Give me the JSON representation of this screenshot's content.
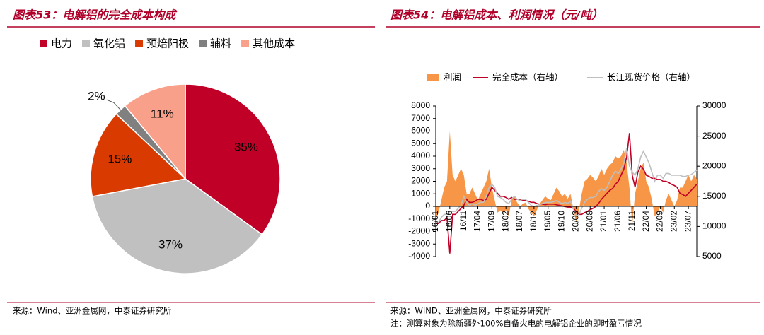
{
  "chart_data": [
    {
      "type": "pie",
      "title": "图表53：电解铝的完全成本构成",
      "categories": [
        "电力",
        "氧化铝",
        "预焙阳极",
        "辅料",
        "其他成本"
      ],
      "values": [
        35,
        37,
        15,
        2,
        11
      ],
      "value_labels": [
        "35%",
        "37%",
        "15%",
        "2%",
        "11%"
      ],
      "colors": [
        "#c00026",
        "#c0c0c0",
        "#d93a00",
        "#808080",
        "#f9a08a"
      ],
      "source": "来源：Wind、亚洲金属网，中泰证券研究所"
    },
    {
      "type": "combo",
      "title": "图表54：电解铝成本、利润情况（元/吨）",
      "categories": [
        "16/01",
        null,
        null,
        null,
        null,
        "16/06",
        null,
        null,
        null,
        null,
        "16/11",
        null,
        null,
        null,
        null,
        "17/04",
        null,
        null,
        null,
        null,
        "17/09",
        null,
        null,
        null,
        null,
        "18/02",
        null,
        null,
        null,
        null,
        "18/07",
        null,
        null,
        null,
        null,
        "18/12",
        null,
        null,
        null,
        null,
        "19/05",
        null,
        null,
        null,
        null,
        "19/10",
        null,
        null,
        null,
        null,
        "20/03",
        null,
        null,
        null,
        null,
        "20/08",
        null,
        null,
        null,
        null,
        "21/01",
        null,
        null,
        null,
        null,
        "21/06",
        null,
        null,
        null,
        null,
        "21/11",
        null,
        null,
        null,
        null,
        "22/04",
        null,
        null,
        null,
        null,
        "22/09",
        null,
        null,
        null,
        null,
        "23/02",
        null,
        null,
        null,
        null,
        "23/07",
        null,
        null,
        null
      ],
      "series": [
        {
          "name": "利润",
          "color": "#f79646",
          "axis": "y",
          "kind": "area",
          "values": [
            -1000,
            -500,
            500,
            1500,
            2000,
            6000,
            2500,
            2000,
            2500,
            3000,
            2500,
            1000,
            1000,
            1500,
            1000,
            500,
            1000,
            1500,
            2000,
            3000,
            1500,
            500,
            -500,
            -300,
            -500,
            -300,
            -800,
            500,
            800,
            300,
            0,
            200,
            300,
            -200,
            -500,
            -800,
            -300,
            200,
            500,
            800,
            600,
            500,
            1000,
            1500,
            1200,
            800,
            1000,
            600,
            1000,
            -200,
            -1200,
            -300,
            1000,
            2000,
            2200,
            2500,
            2300,
            2000,
            2400,
            3000,
            2500,
            3000,
            3300,
            3500,
            4000,
            3800,
            4000,
            4500,
            3500,
            1500,
            -1500,
            1000,
            2000,
            3000,
            3500,
            2000,
            1500,
            500,
            -800,
            -500,
            0,
            -500,
            500,
            1000,
            500,
            0,
            500,
            1500,
            1500,
            2000,
            2500,
            2000,
            2500,
            2200
          ]
        },
        {
          "name": "完全成本（右轴）",
          "color": "#c00026",
          "axis": "y2",
          "kind": "line",
          "values": [
            10500,
            10500,
            11000,
            11000,
            11500,
            5500,
            12000,
            12000,
            12500,
            13000,
            13500,
            14500,
            14000,
            14000,
            14200,
            14500,
            14500,
            14300,
            14500,
            15500,
            16500,
            16000,
            15500,
            15000,
            15000,
            14800,
            14500,
            14800,
            14500,
            14500,
            14500,
            14300,
            14300,
            14200,
            14000,
            14000,
            13800,
            13700,
            13700,
            13600,
            13700,
            13700,
            13700,
            13600,
            13500,
            13400,
            13300,
            13200,
            13200,
            13000,
            12500,
            12000,
            12000,
            12300,
            12500,
            12800,
            13000,
            13300,
            13800,
            14500,
            15000,
            15500,
            16000,
            16300,
            17000,
            17500,
            18500,
            19500,
            21500,
            25500,
            18500,
            16500,
            19000,
            20000,
            19500,
            18500,
            18300,
            18000,
            18000,
            17800,
            17800,
            17500,
            17500,
            17300,
            17000,
            16800,
            16500,
            15500,
            15300,
            15000,
            15500,
            16000,
            16500,
            17000
          ]
        },
        {
          "name": "长江现货价格（右轴）",
          "color": "#bfbfbf",
          "axis": "y2",
          "kind": "line",
          "values": [
            10500,
            10700,
            11500,
            12000,
            12000,
            12500,
            12500,
            12500,
            13000,
            13500,
            15000,
            14000,
            13500,
            13800,
            13500,
            13800,
            14000,
            14000,
            15000,
            16500,
            17000,
            16500,
            15000,
            14800,
            14500,
            14000,
            13800,
            14500,
            15000,
            14500,
            14300,
            14500,
            14500,
            14000,
            13500,
            13300,
            13500,
            13600,
            13800,
            14000,
            14000,
            14000,
            14100,
            14300,
            14000,
            13800,
            14000,
            13800,
            14200,
            13000,
            11800,
            12000,
            13000,
            14000,
            14500,
            14800,
            14800,
            15000,
            15800,
            16300,
            16000,
            16500,
            17500,
            18500,
            19200,
            18800,
            19500,
            20500,
            23000,
            20000,
            19000,
            18500,
            19500,
            21500,
            22500,
            21500,
            20500,
            19000,
            17500,
            18500,
            18500,
            18000,
            18800,
            18800,
            18500,
            18500,
            18500,
            18500,
            18300,
            18300,
            18500,
            18600,
            19000,
            19300
          ]
        }
      ],
      "ylim": [
        -4000,
        8000
      ],
      "yticks": [
        -4000,
        -3000,
        -2000,
        -1000,
        0,
        1000,
        2000,
        3000,
        4000,
        5000,
        6000,
        7000,
        8000
      ],
      "y2lim": [
        5000,
        30000
      ],
      "y2ticks": [
        5000,
        10000,
        15000,
        20000,
        25000,
        30000
      ],
      "source": "来源：WIND、亚洲金属网，中泰证券研究所",
      "note": "注：测算对象为除新疆外100%自备火电的电解铝企业的即时盈亏情况"
    }
  ]
}
